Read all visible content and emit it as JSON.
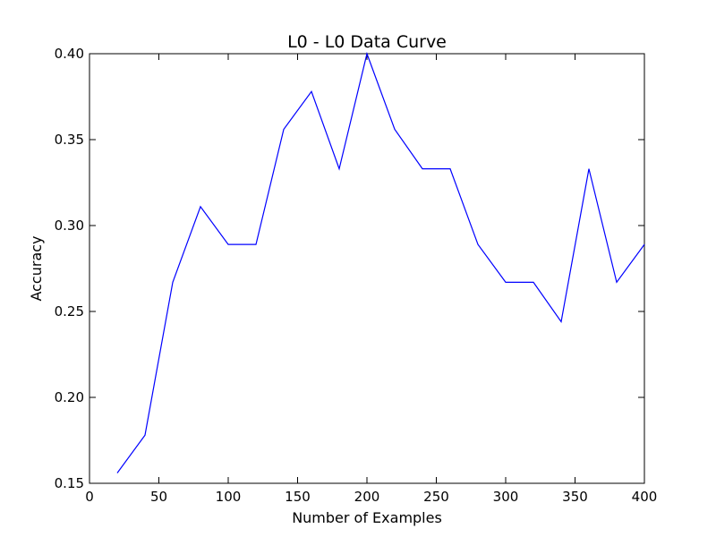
{
  "chart_data": {
    "type": "line",
    "title": "L0 - L0 Data Curve",
    "xlabel": "Number of Examples",
    "ylabel": "Accuracy",
    "xlim": [
      0,
      400
    ],
    "ylim": [
      0.15,
      0.4
    ],
    "xticks": [
      0,
      50,
      100,
      150,
      200,
      250,
      300,
      350,
      400
    ],
    "yticks": [
      0.15,
      0.2,
      0.25,
      0.3,
      0.35,
      0.4
    ],
    "xtick_labels": [
      "0",
      "50",
      "100",
      "150",
      "200",
      "250",
      "300",
      "350",
      "400"
    ],
    "ytick_labels": [
      "0.15",
      "0.20",
      "0.25",
      "0.30",
      "0.35",
      "0.40"
    ],
    "grid": false,
    "series": [
      {
        "color": "#0000ff",
        "x": [
          20,
          40,
          60,
          80,
          100,
          120,
          140,
          160,
          180,
          200,
          220,
          240,
          260,
          280,
          300,
          320,
          340,
          360,
          380,
          400
        ],
        "y": [
          0.156,
          0.178,
          0.267,
          0.311,
          0.289,
          0.289,
          0.356,
          0.378,
          0.333,
          0.4,
          0.356,
          0.333,
          0.333,
          0.289,
          0.267,
          0.267,
          0.244,
          0.333,
          0.267,
          0.289
        ]
      }
    ]
  }
}
